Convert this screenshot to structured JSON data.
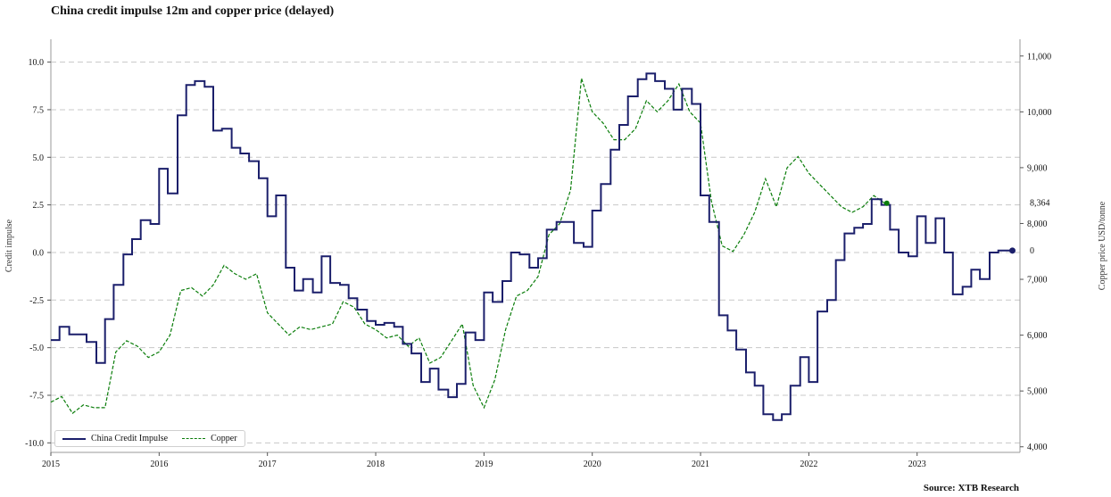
{
  "title": "China credit impulse 12m and copper price (delayed)",
  "source": "Source: XTB Research",
  "chart_data": {
    "type": "line",
    "title": "China credit impulse 12m and copper price (delayed)",
    "ylabel_left": "Credit impulse",
    "ylabel_right": "Copper price USD/tonne",
    "ylim_left": [
      -10.5,
      11.2
    ],
    "ylim_right": [
      3900,
      11300
    ],
    "yticks_left": [
      -10.0,
      -7.5,
      -5.0,
      -2.5,
      0.0,
      2.5,
      5.0,
      7.5,
      10.0
    ],
    "yticks_right": [
      4000,
      5000,
      6000,
      7000,
      8000,
      9000,
      10000,
      11000
    ],
    "ytick_labels_left": [
      "-10.0",
      "-7.5",
      "-5.0",
      "-2.5",
      "0.0",
      "2.5",
      "5.0",
      "7.5",
      "10.0"
    ],
    "ytick_labels_right": [
      "4,000",
      "5,000",
      "6,000",
      "7,000",
      "8,000",
      "9,000",
      "10,000",
      "11,000"
    ],
    "xlim": [
      2015.0,
      2023.95
    ],
    "xticks": [
      "2015",
      "2016",
      "2017",
      "2018",
      "2019",
      "2020",
      "2021",
      "2022",
      "2023"
    ],
    "grid": "horizontal dashed",
    "legend_position": "bottom-left",
    "annotations": [
      {
        "series": "Copper",
        "label": "8,364"
      },
      {
        "series": "China Credit Impulse",
        "label": "0"
      }
    ],
    "series": [
      {
        "name": "China Credit Impulse",
        "color": "#1b1f6b",
        "axis": "left",
        "step": true,
        "x": [
          2015.0,
          2015.08,
          2015.17,
          2015.25,
          2015.33,
          2015.42,
          2015.5,
          2015.58,
          2015.67,
          2015.75,
          2015.83,
          2015.92,
          2016.0,
          2016.08,
          2016.17,
          2016.25,
          2016.33,
          2016.42,
          2016.5,
          2016.58,
          2016.67,
          2016.75,
          2016.83,
          2016.92,
          2017.0,
          2017.08,
          2017.17,
          2017.25,
          2017.33,
          2017.42,
          2017.5,
          2017.58,
          2017.67,
          2017.75,
          2017.83,
          2017.92,
          2018.0,
          2018.08,
          2018.17,
          2018.25,
          2018.33,
          2018.42,
          2018.5,
          2018.58,
          2018.67,
          2018.75,
          2018.83,
          2018.92,
          2019.0,
          2019.08,
          2019.17,
          2019.25,
          2019.33,
          2019.42,
          2019.5,
          2019.58,
          2019.67,
          2019.75,
          2019.83,
          2019.92,
          2020.0,
          2020.08,
          2020.17,
          2020.25,
          2020.33,
          2020.42,
          2020.5,
          2020.58,
          2020.67,
          2020.75,
          2020.83,
          2020.92,
          2021.0,
          2021.08,
          2021.17,
          2021.25,
          2021.33,
          2021.42,
          2021.5,
          2021.58,
          2021.67,
          2021.75,
          2021.83,
          2021.92,
          2022.0,
          2022.08,
          2022.17,
          2022.25,
          2022.33,
          2022.42,
          2022.5,
          2022.58,
          2022.67,
          2022.75,
          2022.83,
          2022.92,
          2023.0,
          2023.08,
          2023.17,
          2023.25,
          2023.33,
          2023.42,
          2023.5,
          2023.58,
          2023.67,
          2023.75,
          2023.83,
          2023.88
        ],
        "values": [
          -4.6,
          -3.9,
          -4.3,
          -4.3,
          -4.7,
          -5.8,
          -3.5,
          -1.7,
          -0.1,
          0.7,
          1.7,
          1.5,
          4.4,
          3.1,
          7.2,
          8.8,
          9.0,
          8.7,
          6.4,
          6.5,
          5.5,
          5.2,
          4.8,
          3.9,
          1.9,
          3.0,
          -0.8,
          -2.0,
          -1.4,
          -2.1,
          -0.2,
          -1.6,
          -1.7,
          -2.4,
          -3.0,
          -3.6,
          -3.8,
          -3.7,
          -3.9,
          -4.8,
          -5.3,
          -6.8,
          -6.1,
          -7.2,
          -7.6,
          -6.9,
          -4.2,
          -4.6,
          -2.1,
          -2.6,
          -1.5,
          0.0,
          -0.1,
          -0.8,
          -0.3,
          1.2,
          1.6,
          1.6,
          0.5,
          0.3,
          2.2,
          3.6,
          5.4,
          6.7,
          8.2,
          9.1,
          9.4,
          9.0,
          8.6,
          7.5,
          8.6,
          7.8,
          3.0,
          1.6,
          -3.3,
          -4.1,
          -5.1,
          -6.3,
          -7.0,
          -8.5,
          -8.8,
          -8.5,
          -7.0,
          -5.5,
          -6.8,
          -3.1,
          -2.5,
          -0.4,
          1.0,
          1.3,
          1.5,
          2.8,
          2.5,
          1.2,
          0.0,
          -0.2,
          1.9,
          0.5,
          1.8,
          0.0,
          -2.2,
          -1.8,
          -0.9,
          -1.4,
          0.0,
          0.1,
          0.1,
          0.1
        ]
      },
      {
        "name": "Copper",
        "color": "#0a7d0a",
        "axis": "right",
        "style": "dashed",
        "x": [
          2015.0,
          2015.1,
          2015.2,
          2015.3,
          2015.4,
          2015.5,
          2015.6,
          2015.7,
          2015.8,
          2015.9,
          2016.0,
          2016.1,
          2016.2,
          2016.3,
          2016.4,
          2016.5,
          2016.6,
          2016.7,
          2016.8,
          2016.9,
          2017.0,
          2017.1,
          2017.2,
          2017.3,
          2017.4,
          2017.5,
          2017.6,
          2017.7,
          2017.8,
          2017.9,
          2018.0,
          2018.1,
          2018.2,
          2018.3,
          2018.4,
          2018.5,
          2018.6,
          2018.7,
          2018.8,
          2018.9,
          2019.0,
          2019.1,
          2019.2,
          2019.3,
          2019.4,
          2019.5,
          2019.6,
          2019.7,
          2019.8,
          2019.9,
          2020.0,
          2020.1,
          2020.2,
          2020.3,
          2020.4,
          2020.5,
          2020.6,
          2020.7,
          2020.8,
          2020.9,
          2021.0,
          2021.1,
          2021.2,
          2021.3,
          2021.4,
          2021.5,
          2021.6,
          2021.7,
          2021.8,
          2021.9,
          2022.0,
          2022.1,
          2022.2,
          2022.3,
          2022.4,
          2022.5,
          2022.6,
          2022.7,
          2022.72
        ],
        "values": [
          4800,
          4900,
          4600,
          4750,
          4700,
          4700,
          5700,
          5900,
          5800,
          5600,
          5700,
          6000,
          6800,
          6850,
          6700,
          6900,
          7250,
          7100,
          7000,
          7100,
          6400,
          6200,
          6000,
          6150,
          6100,
          6150,
          6200,
          6600,
          6500,
          6200,
          6100,
          5950,
          6000,
          5800,
          5950,
          5500,
          5600,
          5900,
          6200,
          5100,
          4700,
          5200,
          6100,
          6700,
          6800,
          7050,
          7800,
          8000,
          8600,
          10600,
          10000,
          9800,
          9500,
          9500,
          9700,
          10200,
          10000,
          10200,
          10500,
          10000,
          9800,
          8400,
          7600,
          7500,
          7800,
          8200,
          8800,
          8300,
          9000,
          9200,
          8900,
          8700,
          8500,
          8300,
          8200,
          8300,
          8500,
          8364,
          8364
        ]
      }
    ]
  }
}
